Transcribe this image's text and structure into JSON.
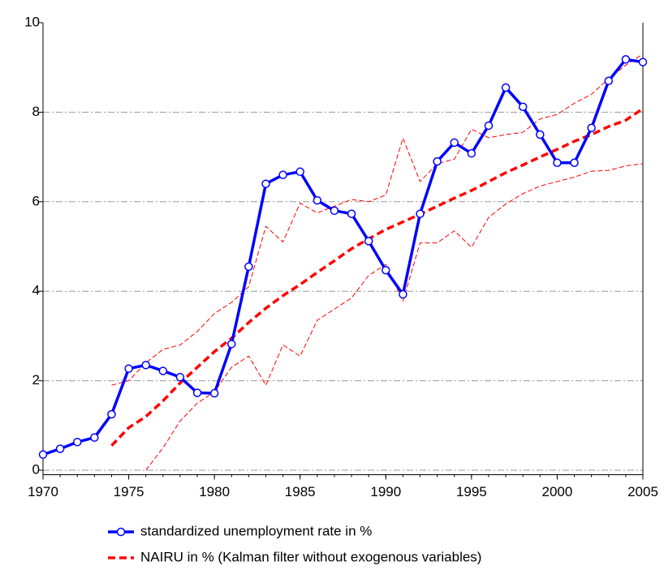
{
  "chart_data": {
    "type": "line",
    "x": [
      1970,
      1971,
      1972,
      1973,
      1974,
      1975,
      1976,
      1977,
      1978,
      1979,
      1980,
      1981,
      1982,
      1983,
      1984,
      1985,
      1986,
      1987,
      1988,
      1989,
      1990,
      1991,
      1992,
      1993,
      1994,
      1995,
      1996,
      1997,
      1998,
      1999,
      2000,
      2001,
      2002,
      2003,
      2004,
      2005
    ],
    "series": [
      {
        "name": "standardized unemployment rate in %",
        "color": "#0000ff",
        "style": "solid",
        "width": 3.5,
        "markers": true,
        "values": [
          0.35,
          0.48,
          0.63,
          0.73,
          1.25,
          2.27,
          2.35,
          2.22,
          2.08,
          1.73,
          1.72,
          2.82,
          4.55,
          6.4,
          6.6,
          6.67,
          6.03,
          5.8,
          5.73,
          5.12,
          4.47,
          3.93,
          5.73,
          6.9,
          7.32,
          7.08,
          7.7,
          8.55,
          8.12,
          7.5,
          6.87,
          6.87,
          7.65,
          8.7,
          9.18,
          9.12
        ]
      },
      {
        "name": "NAIRU in % (Kalman filter without exogenous variables)",
        "color": "#ff0000",
        "style": "dashed",
        "width": 3.5,
        "markers": false,
        "values": [
          null,
          null,
          null,
          null,
          0.55,
          0.95,
          1.2,
          1.55,
          1.95,
          2.3,
          2.65,
          2.95,
          3.3,
          3.62,
          3.9,
          4.15,
          4.42,
          4.68,
          4.95,
          5.17,
          5.38,
          5.55,
          5.72,
          5.9,
          6.08,
          6.25,
          6.45,
          6.65,
          6.82,
          7.0,
          7.17,
          7.35,
          7.5,
          7.68,
          7.82,
          8.08
        ]
      },
      {
        "color": "#ff0000",
        "style": "dashed",
        "width": 1,
        "markers": false,
        "values": [
          null,
          null,
          null,
          null,
          1.9,
          2.0,
          2.4,
          2.7,
          2.8,
          3.1,
          3.5,
          3.75,
          4.1,
          5.45,
          5.1,
          5.97,
          5.75,
          5.9,
          6.05,
          6.0,
          6.15,
          7.42,
          6.45,
          6.85,
          6.95,
          7.62,
          7.43,
          7.5,
          7.55,
          7.85,
          7.95,
          8.2,
          8.4,
          8.75,
          9.05,
          9.3
        ]
      },
      {
        "color": "#ff0000",
        "style": "dashed",
        "width": 1,
        "markers": false,
        "values": [
          null,
          null,
          null,
          null,
          null,
          null,
          0.0,
          0.5,
          1.1,
          1.5,
          1.75,
          2.3,
          2.55,
          1.9,
          2.8,
          2.55,
          3.35,
          3.6,
          3.85,
          4.35,
          4.6,
          3.78,
          5.08,
          5.08,
          5.35,
          4.98,
          5.65,
          5.95,
          6.18,
          6.35,
          6.45,
          6.55,
          6.68,
          6.7,
          6.8,
          6.85
        ]
      }
    ],
    "xlim": [
      1970,
      2005
    ],
    "xticks": [
      1970,
      1975,
      1980,
      1985,
      1990,
      1995,
      2000,
      2005
    ],
    "ylim": [
      -0.1,
      10
    ],
    "yticks": [
      0,
      2,
      4,
      6,
      8,
      10
    ],
    "grid": true,
    "legend": "bottom"
  }
}
